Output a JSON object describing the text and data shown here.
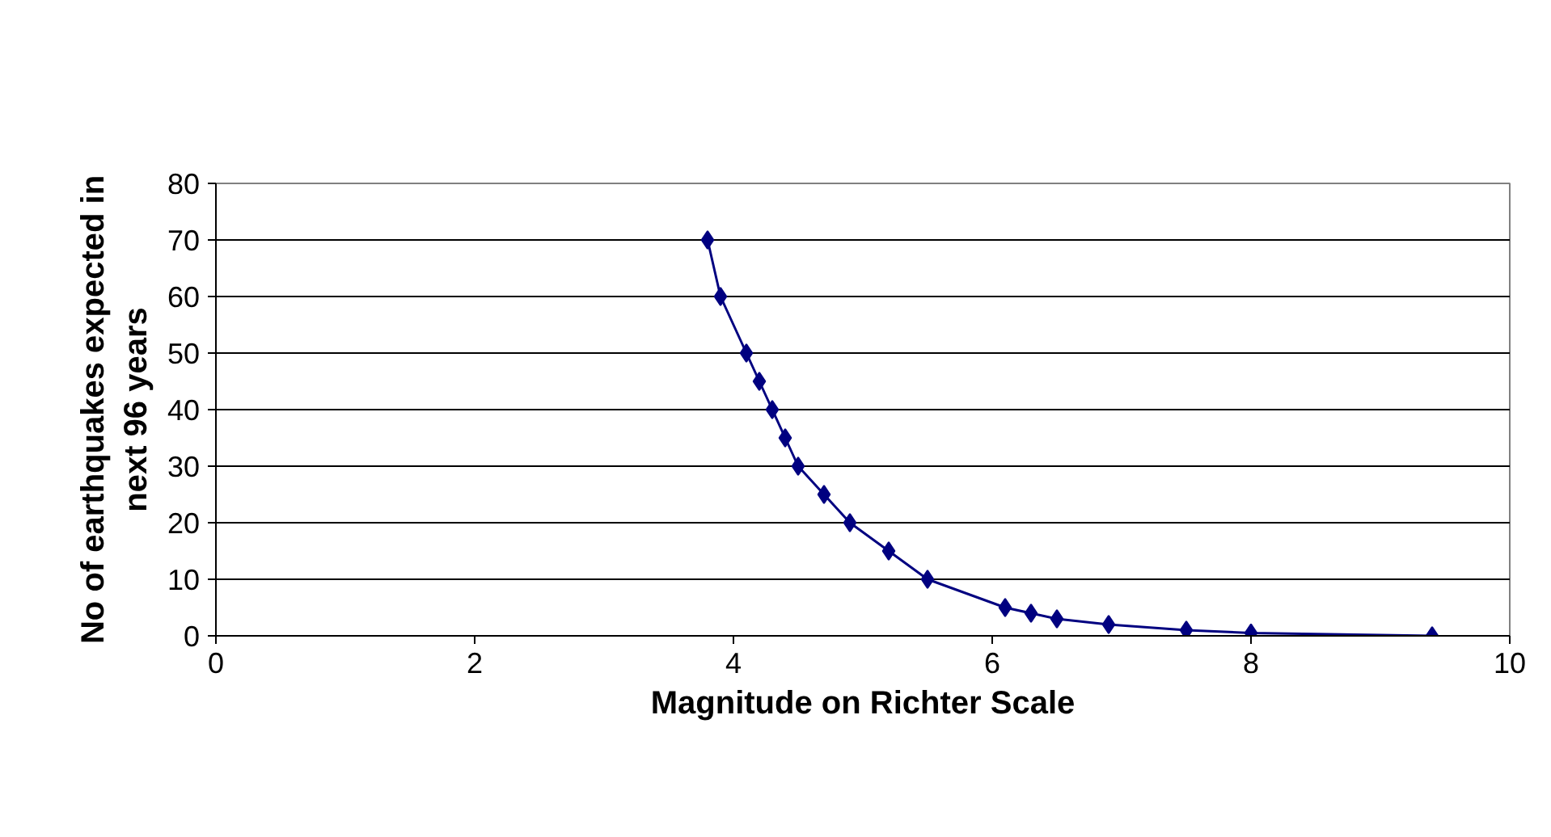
{
  "chart_data": {
    "type": "line",
    "xlabel": "Magnitude on Richter Scale",
    "ylabel": "No of earthquakes expected in\nnext 96 years",
    "x": [
      3.8,
      3.9,
      4.1,
      4.2,
      4.3,
      4.4,
      4.5,
      4.7,
      4.9,
      5.2,
      5.5,
      6.1,
      6.3,
      6.5,
      6.9,
      7.5,
      8.0,
      9.4
    ],
    "series": [
      {
        "color": "#000080",
        "values": [
          70,
          60,
          50,
          45,
          40,
          35,
          30,
          25,
          20,
          15,
          10,
          5,
          4,
          3,
          2,
          1,
          0.5,
          0
        ]
      }
    ],
    "xlim": [
      0,
      10
    ],
    "xticks": [
      0,
      2,
      4,
      6,
      8,
      10
    ],
    "ylim": [
      0,
      80
    ],
    "yticks": [
      0,
      10,
      20,
      30,
      40,
      50,
      60,
      70,
      80
    ],
    "grid": "y",
    "marker": "diamond",
    "line_style": "solid"
  }
}
